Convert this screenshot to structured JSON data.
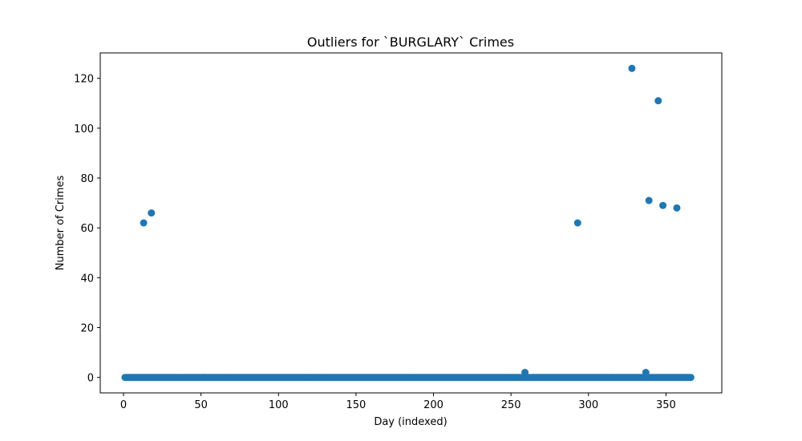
{
  "chart_data": {
    "type": "scatter",
    "title": "Outliers for `BURGLARY` Crimes",
    "xlabel": "Day (indexed)",
    "ylabel": "Number of Crimes",
    "xlim": [
      -15,
      386
    ],
    "ylim": [
      -6.2,
      130.2
    ],
    "x_ticks": [
      0,
      50,
      100,
      150,
      200,
      250,
      300,
      350
    ],
    "y_ticks": [
      0,
      20,
      40,
      60,
      80,
      100,
      120
    ],
    "grid": false,
    "marker_color": "#1f77b4",
    "baseline": {
      "value": 0,
      "x_start": 1,
      "x_end": 366
    },
    "points": [
      {
        "x": 13,
        "y": 62
      },
      {
        "x": 18,
        "y": 66
      },
      {
        "x": 259,
        "y": 2
      },
      {
        "x": 293,
        "y": 62
      },
      {
        "x": 328,
        "y": 124
      },
      {
        "x": 337,
        "y": 2
      },
      {
        "x": 339,
        "y": 71
      },
      {
        "x": 345,
        "y": 111
      },
      {
        "x": 348,
        "y": 69
      },
      {
        "x": 357,
        "y": 68
      }
    ]
  }
}
